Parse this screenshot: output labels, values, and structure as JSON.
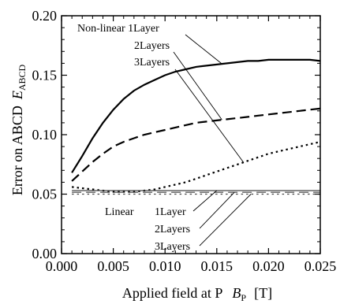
{
  "chart_data": {
    "type": "line",
    "xlabel": "Applied field at P",
    "xlabel_symbol": "B",
    "xlabel_subscript": "P",
    "xlabel_unit": "[T]",
    "ylabel": "Error on ABCD",
    "ylabel_symbol": "E",
    "ylabel_subscript": "ABCD",
    "xlim": [
      0.0,
      0.025
    ],
    "ylim": [
      0.0,
      0.2
    ],
    "xticks": [
      "0.000",
      "0.005",
      "0.010",
      "0.015",
      "0.020",
      "0.025"
    ],
    "yticks": [
      "0.00",
      "0.05",
      "0.10",
      "0.15",
      "0.20"
    ],
    "grid": false,
    "series": [
      {
        "name": "Non-linear 1Layer",
        "style": "solid",
        "points": [
          [
            0.001,
            0.068
          ],
          [
            0.002,
            0.082
          ],
          [
            0.003,
            0.097
          ],
          [
            0.004,
            0.11
          ],
          [
            0.005,
            0.121
          ],
          [
            0.006,
            0.13
          ],
          [
            0.007,
            0.137
          ],
          [
            0.008,
            0.142
          ],
          [
            0.009,
            0.146
          ],
          [
            0.01,
            0.15
          ],
          [
            0.011,
            0.153
          ],
          [
            0.012,
            0.155
          ],
          [
            0.013,
            0.157
          ],
          [
            0.014,
            0.158
          ],
          [
            0.015,
            0.159
          ],
          [
            0.016,
            0.16
          ],
          [
            0.017,
            0.161
          ],
          [
            0.018,
            0.162
          ],
          [
            0.019,
            0.162
          ],
          [
            0.02,
            0.163
          ],
          [
            0.021,
            0.163
          ],
          [
            0.022,
            0.163
          ],
          [
            0.023,
            0.163
          ],
          [
            0.024,
            0.163
          ],
          [
            0.025,
            0.162
          ]
        ]
      },
      {
        "name": "Non-linear 2Layers",
        "style": "dashed",
        "points": [
          [
            0.001,
            0.061
          ],
          [
            0.002,
            0.069
          ],
          [
            0.003,
            0.077
          ],
          [
            0.004,
            0.084
          ],
          [
            0.005,
            0.09
          ],
          [
            0.006,
            0.094
          ],
          [
            0.007,
            0.097
          ],
          [
            0.008,
            0.1
          ],
          [
            0.009,
            0.102
          ],
          [
            0.01,
            0.104
          ],
          [
            0.011,
            0.106
          ],
          [
            0.012,
            0.108
          ],
          [
            0.013,
            0.11
          ],
          [
            0.014,
            0.111
          ],
          [
            0.015,
            0.112
          ],
          [
            0.016,
            0.113
          ],
          [
            0.017,
            0.114
          ],
          [
            0.018,
            0.115
          ],
          [
            0.019,
            0.116
          ],
          [
            0.02,
            0.117
          ],
          [
            0.021,
            0.118
          ],
          [
            0.022,
            0.119
          ],
          [
            0.023,
            0.12
          ],
          [
            0.024,
            0.121
          ],
          [
            0.025,
            0.122
          ]
        ]
      },
      {
        "name": "Non-linear 3Layers",
        "style": "dotted",
        "points": [
          [
            0.001,
            0.056
          ],
          [
            0.002,
            0.055
          ],
          [
            0.003,
            0.054
          ],
          [
            0.004,
            0.053
          ],
          [
            0.005,
            0.052
          ],
          [
            0.006,
            0.052
          ],
          [
            0.007,
            0.052
          ],
          [
            0.008,
            0.053
          ],
          [
            0.009,
            0.054
          ],
          [
            0.01,
            0.056
          ],
          [
            0.011,
            0.058
          ],
          [
            0.012,
            0.06
          ],
          [
            0.013,
            0.063
          ],
          [
            0.014,
            0.066
          ],
          [
            0.015,
            0.069
          ],
          [
            0.016,
            0.072
          ],
          [
            0.017,
            0.075
          ],
          [
            0.018,
            0.078
          ],
          [
            0.019,
            0.081
          ],
          [
            0.02,
            0.084
          ],
          [
            0.021,
            0.086
          ],
          [
            0.022,
            0.088
          ],
          [
            0.023,
            0.09
          ],
          [
            0.024,
            0.092
          ],
          [
            0.025,
            0.094
          ]
        ]
      },
      {
        "name": "Linear 1Layer",
        "style": "solid",
        "points": [
          [
            0.001,
            0.053
          ],
          [
            0.025,
            0.053
          ]
        ]
      },
      {
        "name": "Linear 2Layers",
        "style": "dashed",
        "points": [
          [
            0.001,
            0.0515
          ],
          [
            0.025,
            0.0515
          ]
        ]
      },
      {
        "name": "Linear 3Layers",
        "style": "dotted",
        "points": [
          [
            0.001,
            0.05
          ],
          [
            0.025,
            0.05
          ]
        ]
      }
    ],
    "annotations": {
      "nonlinear_label": "Non-linear 1Layer",
      "nonlinear_2": "2Layers",
      "nonlinear_3": "3Layers",
      "linear_label": "Linear",
      "linear_1": "1Layer",
      "linear_2": "2Layers",
      "linear_3": "3Layers"
    }
  }
}
